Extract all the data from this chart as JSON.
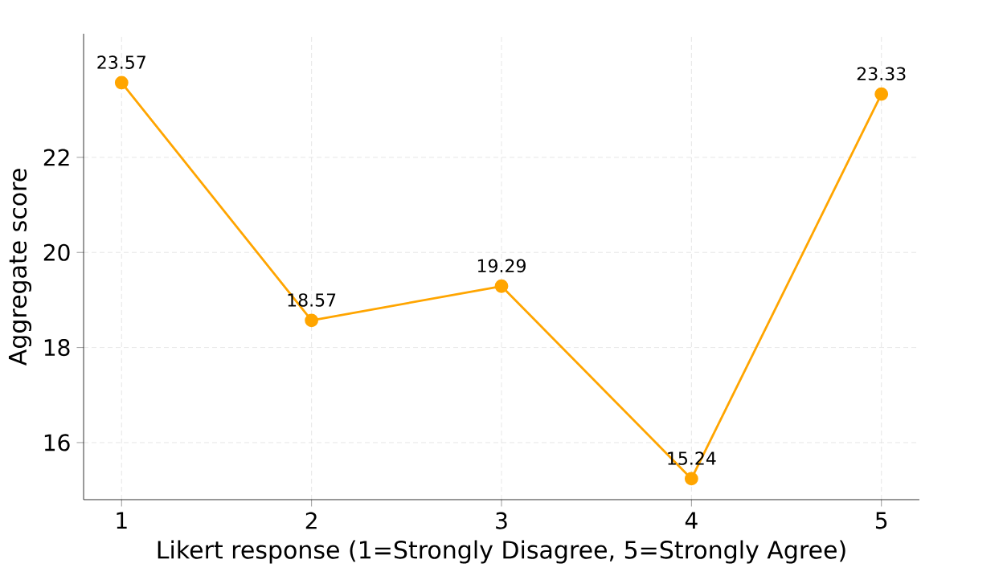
{
  "chart_data": {
    "type": "line",
    "xlabel": "Likert response (1=Strongly Disagree, 5=Strongly Agree)",
    "ylabel": "Aggregate score",
    "x": [
      1,
      2,
      3,
      4,
      5
    ],
    "series": [
      {
        "color": "#ffa500",
        "values": [
          23.57,
          18.57,
          19.29,
          15.24,
          23.33
        ]
      }
    ],
    "xlim": [
      0.8,
      5.2
    ],
    "ylim": [
      14.8,
      24.6
    ],
    "xticks": [
      1,
      2,
      3,
      4,
      5
    ],
    "yticks": [
      16,
      18,
      20,
      22
    ],
    "grid": true,
    "marker": "circle",
    "line_style": "solid",
    "data_labels": true
  }
}
